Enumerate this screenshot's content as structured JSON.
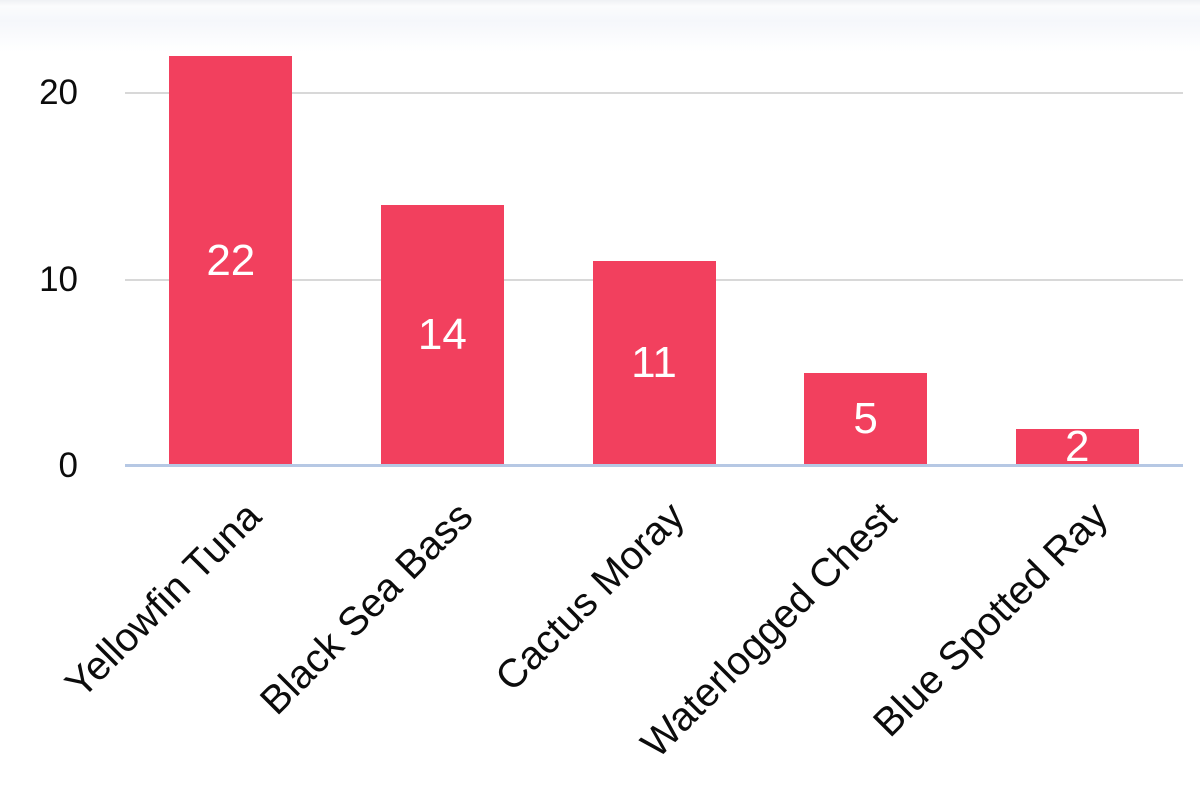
{
  "chart_data": {
    "type": "bar",
    "categories": [
      "Yellowfin Tuna",
      "Black Sea Bass",
      "Cactus Moray",
      "Waterlogged Chest",
      "Blue Spotted Ray"
    ],
    "values": [
      22,
      14,
      11,
      5,
      2
    ],
    "bar_value_labels": [
      "22",
      "14",
      "11",
      "5",
      "2"
    ],
    "title": "",
    "xlabel": "",
    "ylabel": "",
    "yticks": [
      0,
      10,
      20
    ],
    "ylim": [
      0,
      24
    ],
    "grid": true,
    "legend": false,
    "x_label_rotation_deg": -45,
    "colors": {
      "bar": "#f2405e",
      "bar_label_text": "#ffffff",
      "gridline": "#d8d8d8",
      "baseline": "#b6c8e4",
      "tick_text": "#0c0c0c"
    }
  }
}
